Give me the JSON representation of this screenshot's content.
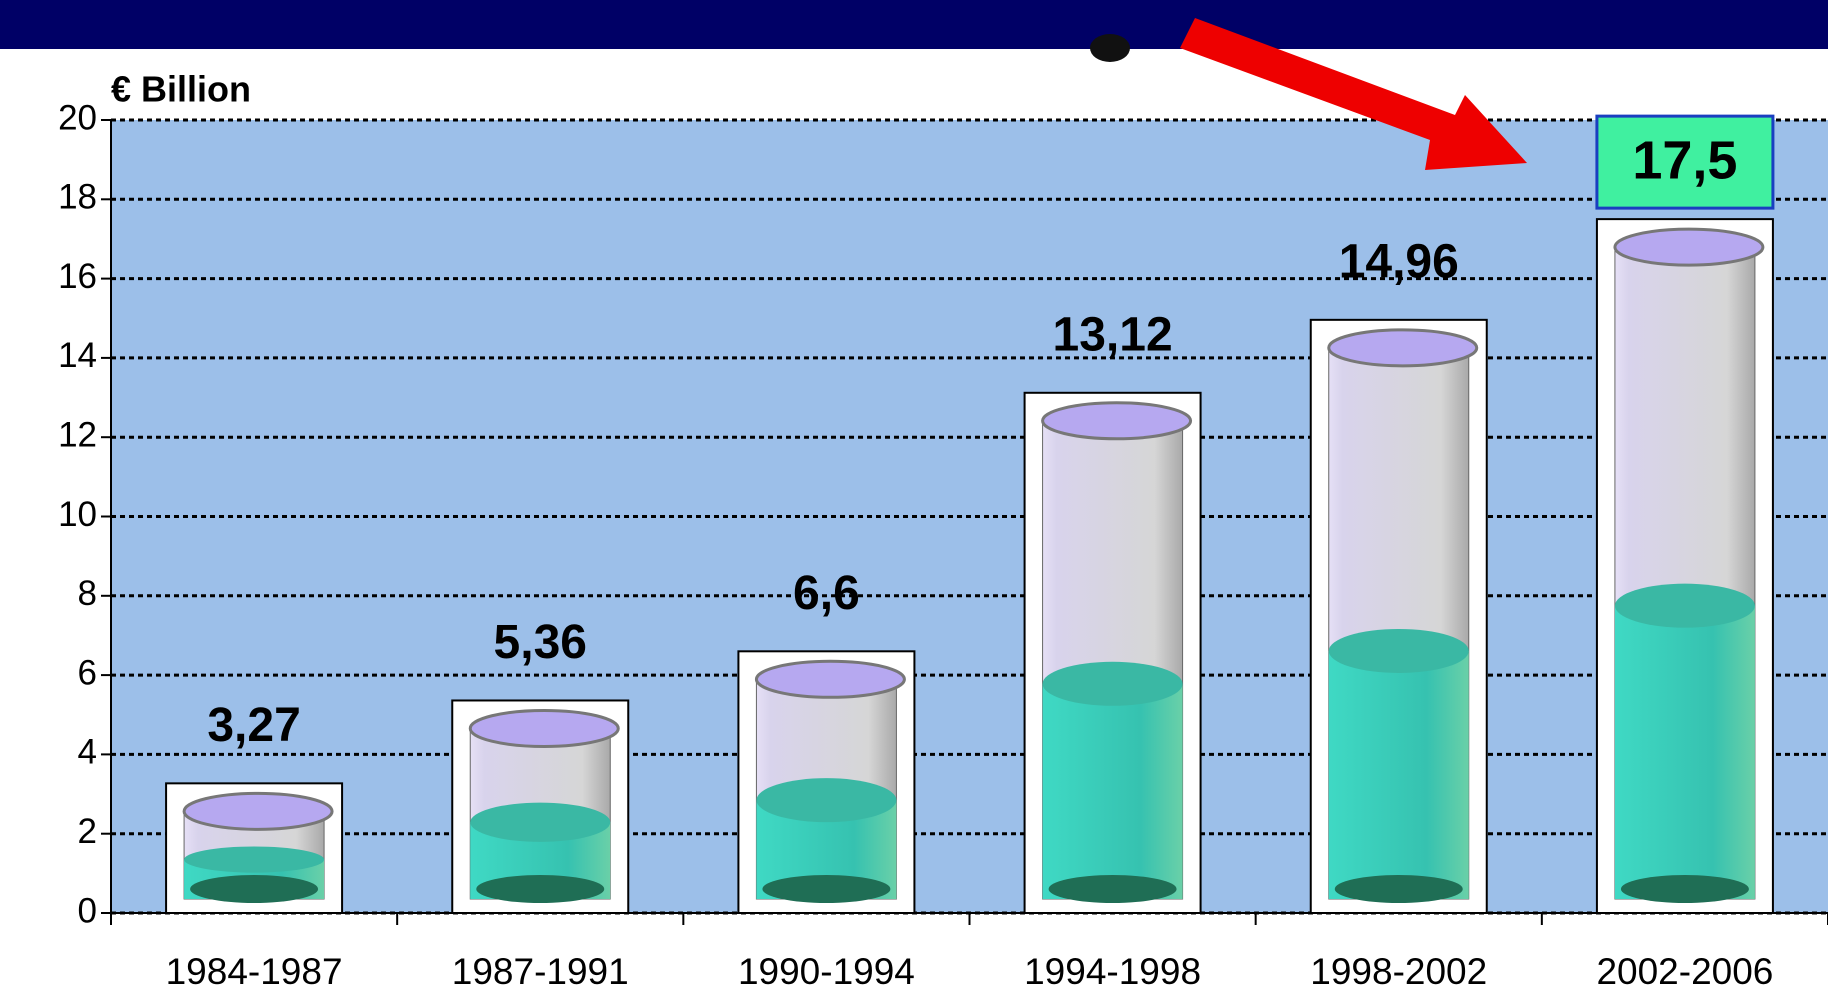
{
  "chart_data": {
    "type": "bar",
    "y_label": "€ Billion",
    "categories": [
      "1984-1987",
      "1987-1991",
      "1990-1994",
      "1994-1998",
      "1998-2002",
      "2002-2006"
    ],
    "values": [
      3.27,
      5.36,
      6.6,
      13.12,
      14.96,
      17.5
    ],
    "value_labels": [
      "3,27",
      "5,36",
      "6,6",
      "13,12",
      "14,96",
      "17,5"
    ],
    "ylim": [
      0,
      20
    ],
    "yticks": [
      0,
      2,
      4,
      6,
      8,
      10,
      12,
      14,
      16,
      18,
      20
    ],
    "grid": true,
    "color": "#38c8b0",
    "background": "#9cbfe9"
  }
}
